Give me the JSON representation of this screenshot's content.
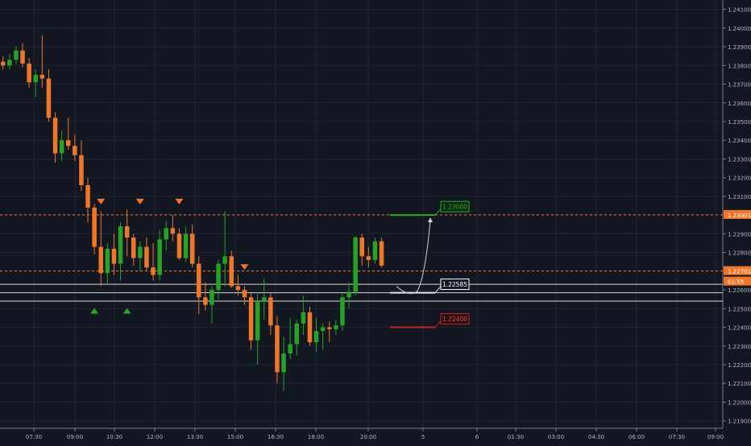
{
  "chart_data": {
    "type": "candlestick",
    "instrument_note": "",
    "x_ticks": [
      "07:30",
      "09:00",
      "10:30",
      "12:00",
      "13:30",
      "15:00",
      "16:30",
      "18:00",
      "20:00",
      "5",
      "6",
      "01:30",
      "03:00",
      "04:30",
      "06:00",
      "07:30",
      "09:00"
    ],
    "y_ticks": [
      "1.24100",
      "1.24000",
      "1.23900",
      "1.23800",
      "1.23700",
      "1.23600",
      "1.23500",
      "1.23400",
      "1.23300",
      "1.23200",
      "1.23100",
      "1.23000",
      "1.22900",
      "1.22800",
      "1.22700",
      "1.22600",
      "1.22500",
      "1.22400",
      "1.22300",
      "1.22200",
      "1.22100",
      "1.22000",
      "1.21900"
    ],
    "y_range": [
      1.2186,
      1.2415
    ],
    "colors": {
      "background": "#131722",
      "grid": "#1f2430",
      "up": "#26a327",
      "down": "#f0762a",
      "target": "#2ea82e",
      "entry": "#e8e8e8",
      "stop": "#c0262b",
      "marker_down": "#f0762a",
      "marker_up": "#26a327",
      "price_dash": "#f0762a"
    },
    "candles": [
      {
        "o": 1.2382,
        "h": 1.2385,
        "l": 1.2378,
        "c": 1.238
      },
      {
        "o": 1.238,
        "h": 1.2386,
        "l": 1.2378,
        "c": 1.2383
      },
      {
        "o": 1.2383,
        "h": 1.239,
        "l": 1.2381,
        "c": 1.2388
      },
      {
        "o": 1.2388,
        "h": 1.2392,
        "l": 1.2379,
        "c": 1.2381
      },
      {
        "o": 1.2381,
        "h": 1.2384,
        "l": 1.2368,
        "c": 1.2371
      },
      {
        "o": 1.2371,
        "h": 1.2378,
        "l": 1.2363,
        "c": 1.2375
      },
      {
        "o": 1.2375,
        "h": 1.2396,
        "l": 1.2368,
        "c": 1.2373
      },
      {
        "o": 1.2373,
        "h": 1.2378,
        "l": 1.235,
        "c": 1.2352
      },
      {
        "o": 1.2352,
        "h": 1.2355,
        "l": 1.2328,
        "c": 1.2333
      },
      {
        "o": 1.2333,
        "h": 1.2345,
        "l": 1.2329,
        "c": 1.234
      },
      {
        "o": 1.234,
        "h": 1.2352,
        "l": 1.2335,
        "c": 1.2337
      },
      {
        "o": 1.2337,
        "h": 1.2343,
        "l": 1.2329,
        "c": 1.2332
      },
      {
        "o": 1.2332,
        "h": 1.234,
        "l": 1.2313,
        "c": 1.2316
      },
      {
        "o": 1.2316,
        "h": 1.232,
        "l": 1.2296,
        "c": 1.2304
      },
      {
        "o": 1.2304,
        "h": 1.2306,
        "l": 1.2279,
        "c": 1.2283
      },
      {
        "o": 1.2283,
        "h": 1.2302,
        "l": 1.2262,
        "c": 1.2269
      },
      {
        "o": 1.2269,
        "h": 1.2285,
        "l": 1.2263,
        "c": 1.2282
      },
      {
        "o": 1.2282,
        "h": 1.229,
        "l": 1.2268,
        "c": 1.2274
      },
      {
        "o": 1.2274,
        "h": 1.2296,
        "l": 1.2265,
        "c": 1.2294
      },
      {
        "o": 1.2294,
        "h": 1.2303,
        "l": 1.2278,
        "c": 1.2288
      },
      {
        "o": 1.2288,
        "h": 1.229,
        "l": 1.2273,
        "c": 1.2277
      },
      {
        "o": 1.2277,
        "h": 1.2286,
        "l": 1.227,
        "c": 1.2283
      },
      {
        "o": 1.2283,
        "h": 1.2288,
        "l": 1.227,
        "c": 1.2272
      },
      {
        "o": 1.2272,
        "h": 1.2285,
        "l": 1.2265,
        "c": 1.2268
      },
      {
        "o": 1.2268,
        "h": 1.2292,
        "l": 1.2265,
        "c": 1.2287
      },
      {
        "o": 1.2287,
        "h": 1.2297,
        "l": 1.2281,
        "c": 1.2293
      },
      {
        "o": 1.2293,
        "h": 1.23,
        "l": 1.2286,
        "c": 1.229
      },
      {
        "o": 1.229,
        "h": 1.2293,
        "l": 1.2276,
        "c": 1.2277
      },
      {
        "o": 1.2277,
        "h": 1.2294,
        "l": 1.2275,
        "c": 1.229
      },
      {
        "o": 1.229,
        "h": 1.2295,
        "l": 1.2272,
        "c": 1.2274
      },
      {
        "o": 1.2274,
        "h": 1.2278,
        "l": 1.2247,
        "c": 1.2256
      },
      {
        "o": 1.2256,
        "h": 1.2264,
        "l": 1.2249,
        "c": 1.2252
      },
      {
        "o": 1.2252,
        "h": 1.2262,
        "l": 1.2242,
        "c": 1.226
      },
      {
        "o": 1.226,
        "h": 1.2276,
        "l": 1.2255,
        "c": 1.2274
      },
      {
        "o": 1.2274,
        "h": 1.2302,
        "l": 1.2262,
        "c": 1.2278
      },
      {
        "o": 1.2278,
        "h": 1.2281,
        "l": 1.2261,
        "c": 1.2262
      },
      {
        "o": 1.2262,
        "h": 1.2268,
        "l": 1.2257,
        "c": 1.226
      },
      {
        "o": 1.226,
        "h": 1.2262,
        "l": 1.2252,
        "c": 1.2256
      },
      {
        "o": 1.2256,
        "h": 1.2259,
        "l": 1.2228,
        "c": 1.2233
      },
      {
        "o": 1.2233,
        "h": 1.2258,
        "l": 1.222,
        "c": 1.2254
      },
      {
        "o": 1.2254,
        "h": 1.2266,
        "l": 1.2244,
        "c": 1.2256
      },
      {
        "o": 1.2256,
        "h": 1.2258,
        "l": 1.2236,
        "c": 1.2241
      },
      {
        "o": 1.2241,
        "h": 1.2246,
        "l": 1.221,
        "c": 1.2216
      },
      {
        "o": 1.2216,
        "h": 1.2235,
        "l": 1.2206,
        "c": 1.2226
      },
      {
        "o": 1.2226,
        "h": 1.2245,
        "l": 1.2223,
        "c": 1.2231
      },
      {
        "o": 1.2231,
        "h": 1.2244,
        "l": 1.2225,
        "c": 1.2242
      },
      {
        "o": 1.2242,
        "h": 1.2257,
        "l": 1.2236,
        "c": 1.2248
      },
      {
        "o": 1.2248,
        "h": 1.2251,
        "l": 1.223,
        "c": 1.2232
      },
      {
        "o": 1.2232,
        "h": 1.2245,
        "l": 1.2227,
        "c": 1.2238
      },
      {
        "o": 1.2238,
        "h": 1.2242,
        "l": 1.2228,
        "c": 1.224
      },
      {
        "o": 1.224,
        "h": 1.2243,
        "l": 1.2232,
        "c": 1.2239
      },
      {
        "o": 1.2239,
        "h": 1.2244,
        "l": 1.2236,
        "c": 1.2241
      },
      {
        "o": 1.2241,
        "h": 1.2258,
        "l": 1.2238,
        "c": 1.2256
      },
      {
        "o": 1.2256,
        "h": 1.2264,
        "l": 1.225,
        "c": 1.2259
      },
      {
        "o": 1.2259,
        "h": 1.2289,
        "l": 1.2257,
        "c": 1.2288
      },
      {
        "o": 1.2288,
        "h": 1.229,
        "l": 1.2273,
        "c": 1.2278
      },
      {
        "o": 1.2278,
        "h": 1.2283,
        "l": 1.2272,
        "c": 1.2276
      },
      {
        "o": 1.2276,
        "h": 1.2288,
        "l": 1.2274,
        "c": 1.2286
      },
      {
        "o": 1.2286,
        "h": 1.2288,
        "l": 1.2272,
        "c": 1.2273
      }
    ],
    "markers": [
      {
        "type": "down",
        "candle": 15,
        "price": 1.2307
      },
      {
        "type": "down",
        "candle": 21,
        "price": 1.2307
      },
      {
        "type": "down",
        "candle": 27,
        "price": 1.2307
      },
      {
        "type": "down",
        "candle": 37,
        "price": 1.2272
      },
      {
        "type": "up",
        "candle": 14,
        "price": 1.2249
      },
      {
        "type": "up",
        "candle": 19,
        "price": 1.2249
      }
    ],
    "horizontal_lines": [
      {
        "price": 1.23001,
        "style": "dashed",
        "color": "#f0762a"
      },
      {
        "price": 1.22701,
        "style": "dashed",
        "color": "#f0762a"
      },
      {
        "price": 1.2263,
        "style": "solid",
        "color": "#d8d8d8"
      },
      {
        "price": 1.22585,
        "style": "solid",
        "color": "#d8d8d8"
      },
      {
        "price": 1.2254,
        "style": "solid",
        "color": "#d8d8d8"
      }
    ],
    "trade_plan": {
      "target": {
        "label": "1.23000",
        "price": 1.23
      },
      "entry": {
        "label": "1.22585",
        "price": 1.22585
      },
      "stop": {
        "label": "1.22400",
        "price": 1.224
      }
    },
    "price_tags": [
      {
        "label": "1.23001",
        "price": 1.23001,
        "bg": "#f0762a",
        "fg": "#ffffff"
      },
      {
        "label": "1.22701",
        "price": 1.22701,
        "bg": "#f0762a",
        "fg": "#ffffff"
      },
      {
        "label": "01:55",
        "price": 1.22645,
        "bg": "#f0762a",
        "fg": "#ffffff"
      }
    ]
  }
}
